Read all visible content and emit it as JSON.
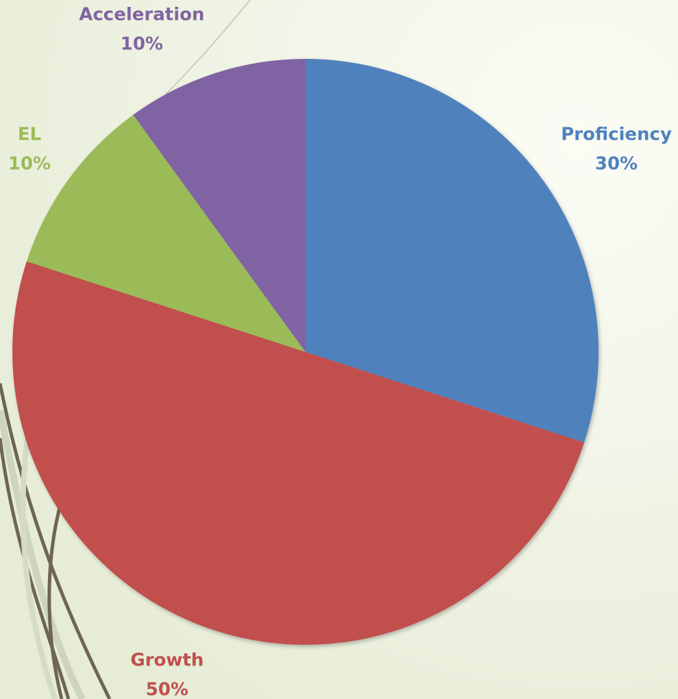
{
  "chart_data": {
    "type": "pie",
    "categories": [
      "Proficiency",
      "Growth",
      "EL",
      "Acceleration"
    ],
    "values": [
      30,
      50,
      10,
      10
    ],
    "value_labels": [
      "30%",
      "50%",
      "10%",
      "10%"
    ],
    "colors": [
      "#4f81bd",
      "#c0504d",
      "#9bbb59",
      "#8064a2"
    ]
  }
}
